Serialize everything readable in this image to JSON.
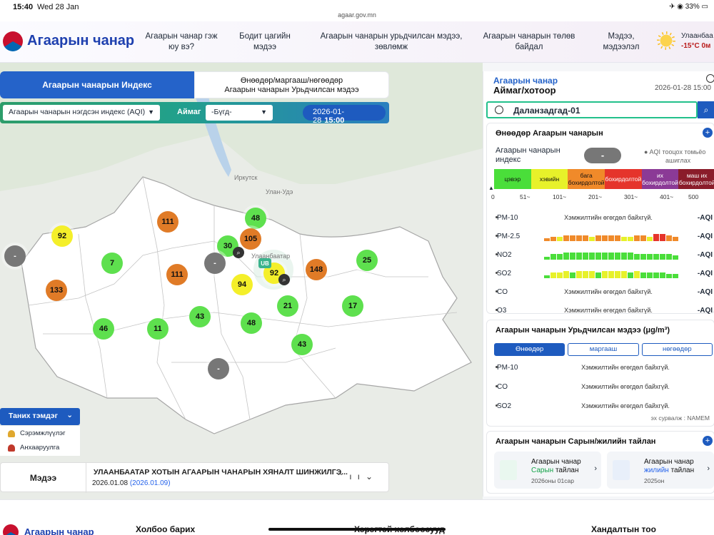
{
  "status_bar": {
    "time": "15:40",
    "date": "Wed 28 Jan",
    "url": "agaar.gov.mn",
    "battery": "33%"
  },
  "header": {
    "brand": "Агаарын чанар",
    "nav": [
      {
        "line1": "Агаарын чанар гэж",
        "line2": "юу вэ?"
      },
      {
        "line1": "Бодит цагийн",
        "line2": "мэдээ"
      },
      {
        "line1": "Агаарын чанарын урьдчилсан мэдээ,",
        "line2": "зөвлөмж"
      },
      {
        "line1": "Агаарын чанарын төлөв",
        "line2": "байдал"
      },
      {
        "line1": "Мэдээ,",
        "line2": "мэдээлэл"
      }
    ],
    "weather": {
      "city": "Улаанбаа",
      "temp": "-15°C",
      "unit": "0м",
      "icon": "sun-icon"
    }
  },
  "tabs": {
    "index": "Агаарын чанарын Индекс",
    "forecast_line1": "Өнөөдөр/маргааш/нөгөөдөр",
    "forecast_line2": "Агаарын чанарын Урьдчилсан мэдээ"
  },
  "filters": {
    "index_select": "Агаарын чанарын нэгдсэн индекс (AQI)",
    "aimag_label": "Аймаг",
    "aimag_select": "-Бүгд-",
    "date": "2026-01-28",
    "time": "15:00"
  },
  "map": {
    "bubbles": [
      {
        "v": "92",
        "c": "y"
      },
      {
        "v": "-",
        "c": "n"
      },
      {
        "v": "111",
        "c": "o"
      },
      {
        "v": "48",
        "c": "g"
      },
      {
        "v": "30",
        "c": "g"
      },
      {
        "v": "105",
        "c": "o"
      },
      {
        "v": "7",
        "c": "g"
      },
      {
        "v": "111",
        "c": "o"
      },
      {
        "v": "-",
        "c": "n"
      },
      {
        "v": "92",
        "c": "y"
      },
      {
        "v": "148",
        "c": "o"
      },
      {
        "v": "25",
        "c": "g"
      },
      {
        "v": "133",
        "c": "o"
      },
      {
        "v": "94",
        "c": "y"
      },
      {
        "v": "21",
        "c": "g"
      },
      {
        "v": "17",
        "c": "g"
      },
      {
        "v": "46",
        "c": "g"
      },
      {
        "v": "11",
        "c": "g"
      },
      {
        "v": "43",
        "c": "g"
      },
      {
        "v": "48",
        "c": "g"
      },
      {
        "v": "43",
        "c": "g"
      },
      {
        "v": "-",
        "c": "n"
      }
    ],
    "ub_marker": "UB",
    "labels": [
      "Иркутск",
      "Улаанбаатар",
      "Улан-Удэ"
    ]
  },
  "legend": {
    "button": "Таних тэмдэг",
    "items": [
      "Сэрэмжлүүлэг",
      "Анхааруулга"
    ]
  },
  "news": {
    "label": "Мэдээ",
    "title": "УЛААНБААТАР ХОТЫН АГААРЫН ЧАНАРЫН ХЯНАЛТ ШИНЖИЛГЭ...",
    "date": "2026.01.08",
    "date_link": "(2026.01.09)"
  },
  "panel": {
    "title1": "Агаарын чанар",
    "title2": "Аймаг/хотоор",
    "date": "2026-01-28 15:00",
    "station": "Даланзадгад-01",
    "today": {
      "heading": "Өнөөдөр Агаарын чанарын",
      "index_label": "Агаарын чанарын индекс",
      "index_value": "-",
      "note1": "AQI тооцох томьёо",
      "note2": "ашиглах",
      "scale": [
        {
          "label": "цэвэр",
          "color": "#4ade3a"
        },
        {
          "label": "хэвийн",
          "color": "#e7f12a"
        },
        {
          "label": "бага бохирдолтой",
          "color": "#f08a2a"
        },
        {
          "label": "бохирдолтой",
          "color": "#e5342b"
        },
        {
          "label": "их бохирдолтой",
          "color": "#8b3a96"
        },
        {
          "label": "маш их бохирдолтой",
          "color": "#8a1c2a"
        }
      ],
      "ticks": [
        "0",
        "51~",
        "101~",
        "201~",
        "301~",
        "401~",
        "500"
      ],
      "pollutants": [
        {
          "name": "PM-10",
          "msg": "Хэмжилтийн өгөгдөл байхгүй.",
          "aqi": "-AQI"
        },
        {
          "name": "PM-2.5",
          "msg": "",
          "aqi": "-AQI"
        },
        {
          "name": "NO2",
          "msg": "",
          "aqi": "-AQI"
        },
        {
          "name": "SO2",
          "msg": "",
          "aqi": "-AQI"
        },
        {
          "name": "CO",
          "msg": "Хэмжилтийн өгөгдөл байхгүй.",
          "aqi": "-AQI"
        },
        {
          "name": "O3",
          "msg": "Хэмжилтийн өгөгдөл байхгүй.",
          "aqi": "-AQI"
        }
      ]
    },
    "forecast": {
      "heading": "Агаарын чанарын Урьдчилсан мэдээ (μg/m³)",
      "tabs": [
        "Өнөөдөр",
        "маргааш",
        "нөгөөдөр"
      ],
      "rows": [
        {
          "name": "PM-10",
          "msg": "Хэмжилтийн өгөгдөл байхгүй."
        },
        {
          "name": "CO",
          "msg": "Хэмжилтийн өгөгдөл байхгүй."
        },
        {
          "name": "SO2",
          "msg": "Хэмжилтийн өгөгдөл байхгүй."
        }
      ],
      "source": "эх сурвалж : NAMEM"
    },
    "reports": {
      "heading": "Агаарын чанарын Сарын/жилийн тайлан",
      "items": [
        {
          "t1": "Агаарын чанар",
          "t2a": "Сарын",
          "t2b": " тайлан",
          "t3": "2026оны 01сар"
        },
        {
          "t1": "Агаарын чанар",
          "t2a": "жилийн",
          "t2b": " тайлан",
          "t3": "2025он"
        }
      ]
    }
  },
  "footer": {
    "brand": "Агаарын чанар",
    "col1": "Холбоо барих",
    "col2": "Хэрэгтэй холбоосууд",
    "col3": "Хандалтын тоо"
  }
}
